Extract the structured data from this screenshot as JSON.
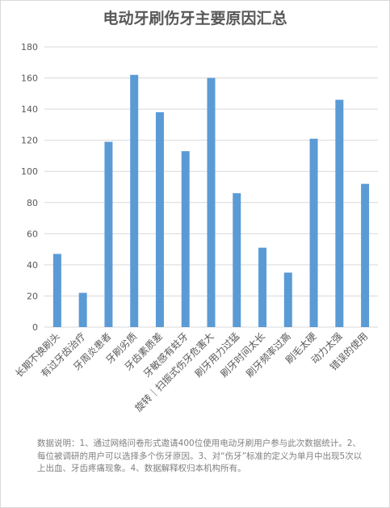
{
  "chart_data": {
    "type": "bar",
    "title": "电动牙刷伤牙主要原因汇总",
    "categories": [
      "长期不换刷头",
      "有过牙齿治疗",
      "牙周炎患者",
      "牙刷劣质",
      "牙齿素质差",
      "牙敏感有蛀牙",
      "旋转｜扫振式伤牙危害大",
      "刷牙用力过猛",
      "刷牙时间太长",
      "刷牙频率过高",
      "刷毛太硬",
      "动力太强",
      "错误的使用"
    ],
    "values": [
      47,
      22,
      119,
      162,
      138,
      113,
      160,
      86,
      51,
      35,
      121,
      146,
      92
    ],
    "ylim": [
      0,
      180
    ],
    "yticks": [
      0,
      20,
      40,
      60,
      80,
      100,
      120,
      140,
      160,
      180
    ],
    "grid": true,
    "xlabel": "",
    "ylabel": "",
    "colors": {
      "bar": "#5b9bd5",
      "grid": "#d9d9d9",
      "axis_text": "#595959",
      "title": "#595959"
    }
  },
  "note": "数据说明：1、通过网络问卷形式邀请400位使用电动牙刷用户参与此次数据统计。2、每位被调研的用户可以选择多个伤牙原因。3、对“伤牙”标准的定义为单月中出现5次以上出血、牙齿疼痛现象。4、数据解释权归本机构所有。"
}
